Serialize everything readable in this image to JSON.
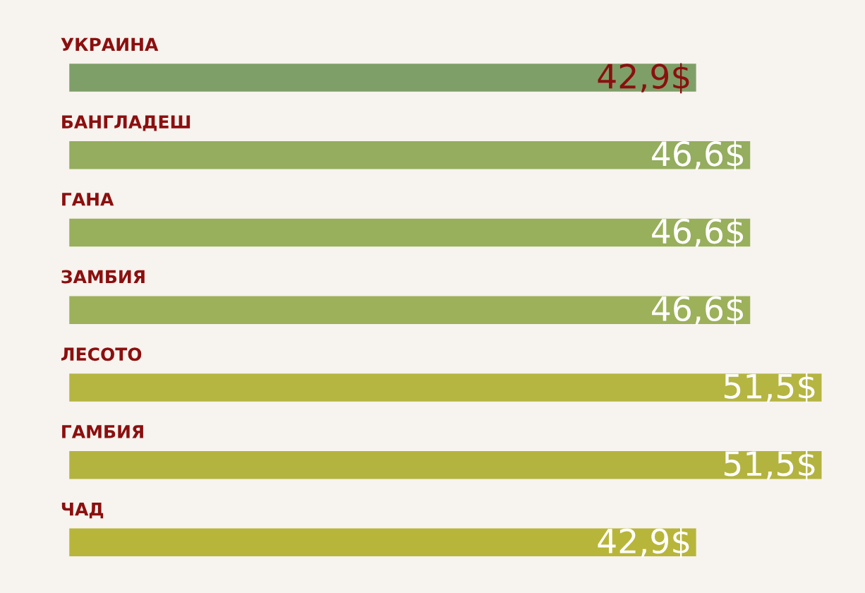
{
  "chart_data": {
    "type": "bar",
    "orientation": "horizontal",
    "categories": [
      "УКРАИНА",
      "БАНГЛАДЕШ",
      "ГАНА",
      "ЗАМБИЯ",
      "ЛЕСОТО",
      "ГАМБИЯ",
      "ЧАД"
    ],
    "values": [
      42.9,
      46.6,
      46.6,
      46.6,
      51.5,
      51.5,
      42.9
    ],
    "value_labels": [
      "42,9$",
      "46,6$",
      "46,6$",
      "46,6$",
      "51,5$",
      "51,5$",
      "42,9$"
    ],
    "colors": [
      "#7f9f68",
      "#94ad5e",
      "#98af5c",
      "#9cb15a",
      "#b5b542",
      "#b3b340",
      "#b8b63a"
    ],
    "data_labels": false
  }
}
